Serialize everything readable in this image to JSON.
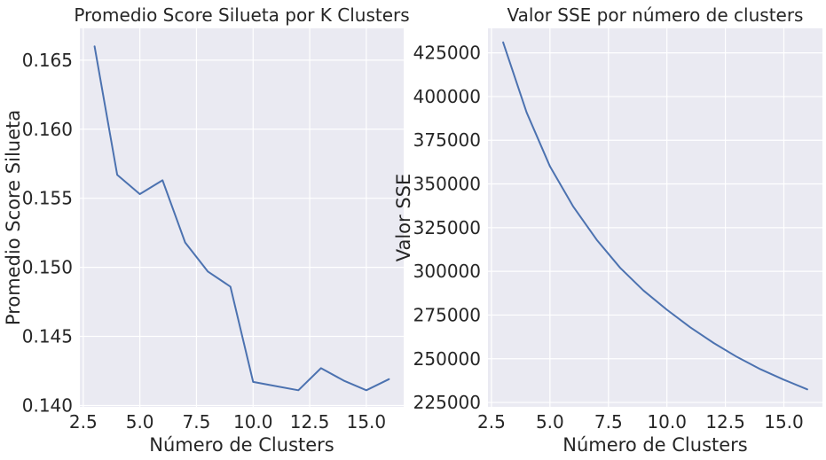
{
  "chart_data": [
    {
      "type": "line",
      "title": "Promedio Score Silueta por K Clusters",
      "xlabel": "Número de Clusters",
      "ylabel": "Promedio Score Silueta",
      "xlim": [
        2.35,
        16.65
      ],
      "ylim": [
        0.1399,
        0.1673
      ],
      "xticks": [
        2.5,
        5.0,
        7.5,
        10.0,
        12.5,
        15.0
      ],
      "xtick_labels": [
        "2.5",
        "5.0",
        "7.5",
        "10.0",
        "12.5",
        "15.0"
      ],
      "yticks": [
        0.14,
        0.145,
        0.15,
        0.155,
        0.16,
        0.165
      ],
      "ytick_labels": [
        "0.140",
        "0.145",
        "0.150",
        "0.155",
        "0.160",
        "0.165"
      ],
      "grid": true,
      "line_color": "#4c72b0",
      "x": [
        3,
        4,
        5,
        6,
        7,
        8,
        9,
        10,
        11,
        12,
        13,
        14,
        15,
        16
      ],
      "series": [
        {
          "values": [
            0.166,
            0.1567,
            0.1553,
            0.1563,
            0.1518,
            0.1497,
            0.1486,
            0.1417,
            0.1414,
            0.1411,
            0.1427,
            0.1418,
            0.1411,
            0.1419
          ]
        }
      ]
    },
    {
      "type": "line",
      "title": "Valor SSE por número de clusters",
      "xlabel": "Número de Clusters",
      "ylabel": "Valor SSE",
      "xlim": [
        2.35,
        16.65
      ],
      "ylim": [
        222500,
        439000
      ],
      "xticks": [
        2.5,
        5.0,
        7.5,
        10.0,
        12.5,
        15.0
      ],
      "xtick_labels": [
        "2.5",
        "5.0",
        "7.5",
        "10.0",
        "12.5",
        "15.0"
      ],
      "yticks": [
        225000,
        250000,
        275000,
        300000,
        325000,
        350000,
        375000,
        400000,
        425000
      ],
      "ytick_labels": [
        "225000",
        "250000",
        "275000",
        "300000",
        "325000",
        "350000",
        "375000",
        "400000",
        "425000"
      ],
      "grid": true,
      "line_color": "#4c72b0",
      "x": [
        3,
        4,
        5,
        6,
        7,
        8,
        9,
        10,
        11,
        12,
        13,
        14,
        15,
        16
      ],
      "series": [
        {
          "values": [
            431000,
            391000,
            360000,
            337000,
            318000,
            302000,
            289000,
            278000,
            268000,
            259000,
            251000,
            244000,
            238000,
            232500
          ]
        }
      ]
    }
  ]
}
